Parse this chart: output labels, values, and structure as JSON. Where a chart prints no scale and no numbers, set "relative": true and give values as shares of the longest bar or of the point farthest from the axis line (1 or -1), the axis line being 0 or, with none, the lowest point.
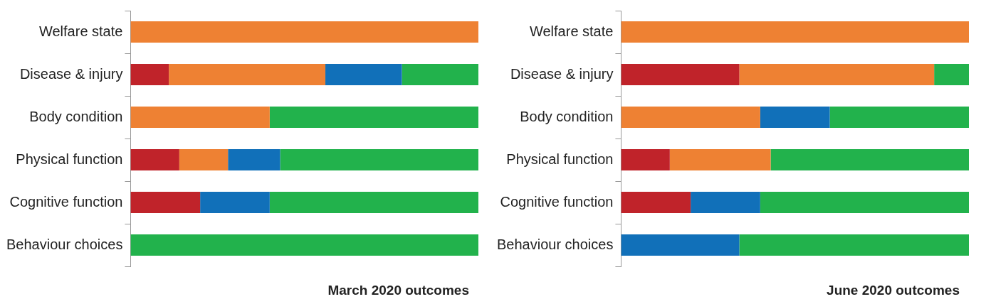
{
  "chart_data": [
    {
      "type": "bar",
      "orientation": "horizontal",
      "stacked": true,
      "relative": true,
      "xlabel": "March 2020 outcomes",
      "legend": false,
      "categories": [
        "Welfare state",
        "Disease & injury",
        "Body condition",
        "Physical function",
        "Cognitive function",
        "Behaviour choices"
      ],
      "series": [
        {
          "color": "#c0232a",
          "values": [
            null,
            0.11,
            null,
            0.14,
            0.2,
            null
          ]
        },
        {
          "color": "#ee8133",
          "values": [
            1,
            0.45,
            0.4,
            0.14,
            null,
            null
          ]
        },
        {
          "color": "#1170b9",
          "values": [
            null,
            0.22,
            null,
            0.15,
            0.2,
            null
          ]
        },
        {
          "color": "#22b24c",
          "values": [
            null,
            0.22,
            0.6,
            0.57,
            0.6,
            1
          ]
        }
      ]
    },
    {
      "type": "bar",
      "orientation": "horizontal",
      "stacked": true,
      "relative": true,
      "xlabel": "June 2020 outcomes",
      "legend": false,
      "categories": [
        "Welfare state",
        "Disease & injury",
        "Body condition",
        "Physical function",
        "Cognitive function",
        "Behaviour choices"
      ],
      "series": [
        {
          "color": "#c0232a",
          "values": [
            null,
            0.34,
            null,
            0.14,
            0.2,
            null
          ]
        },
        {
          "color": "#ee8133",
          "values": [
            1,
            0.56,
            0.4,
            0.29,
            null,
            null
          ]
        },
        {
          "color": "#1170b9",
          "values": [
            null,
            null,
            0.2,
            null,
            0.2,
            0.34
          ]
        },
        {
          "color": "#22b24c",
          "values": [
            null,
            0.1,
            0.4,
            0.57,
            0.6,
            0.66
          ]
        }
      ]
    }
  ]
}
